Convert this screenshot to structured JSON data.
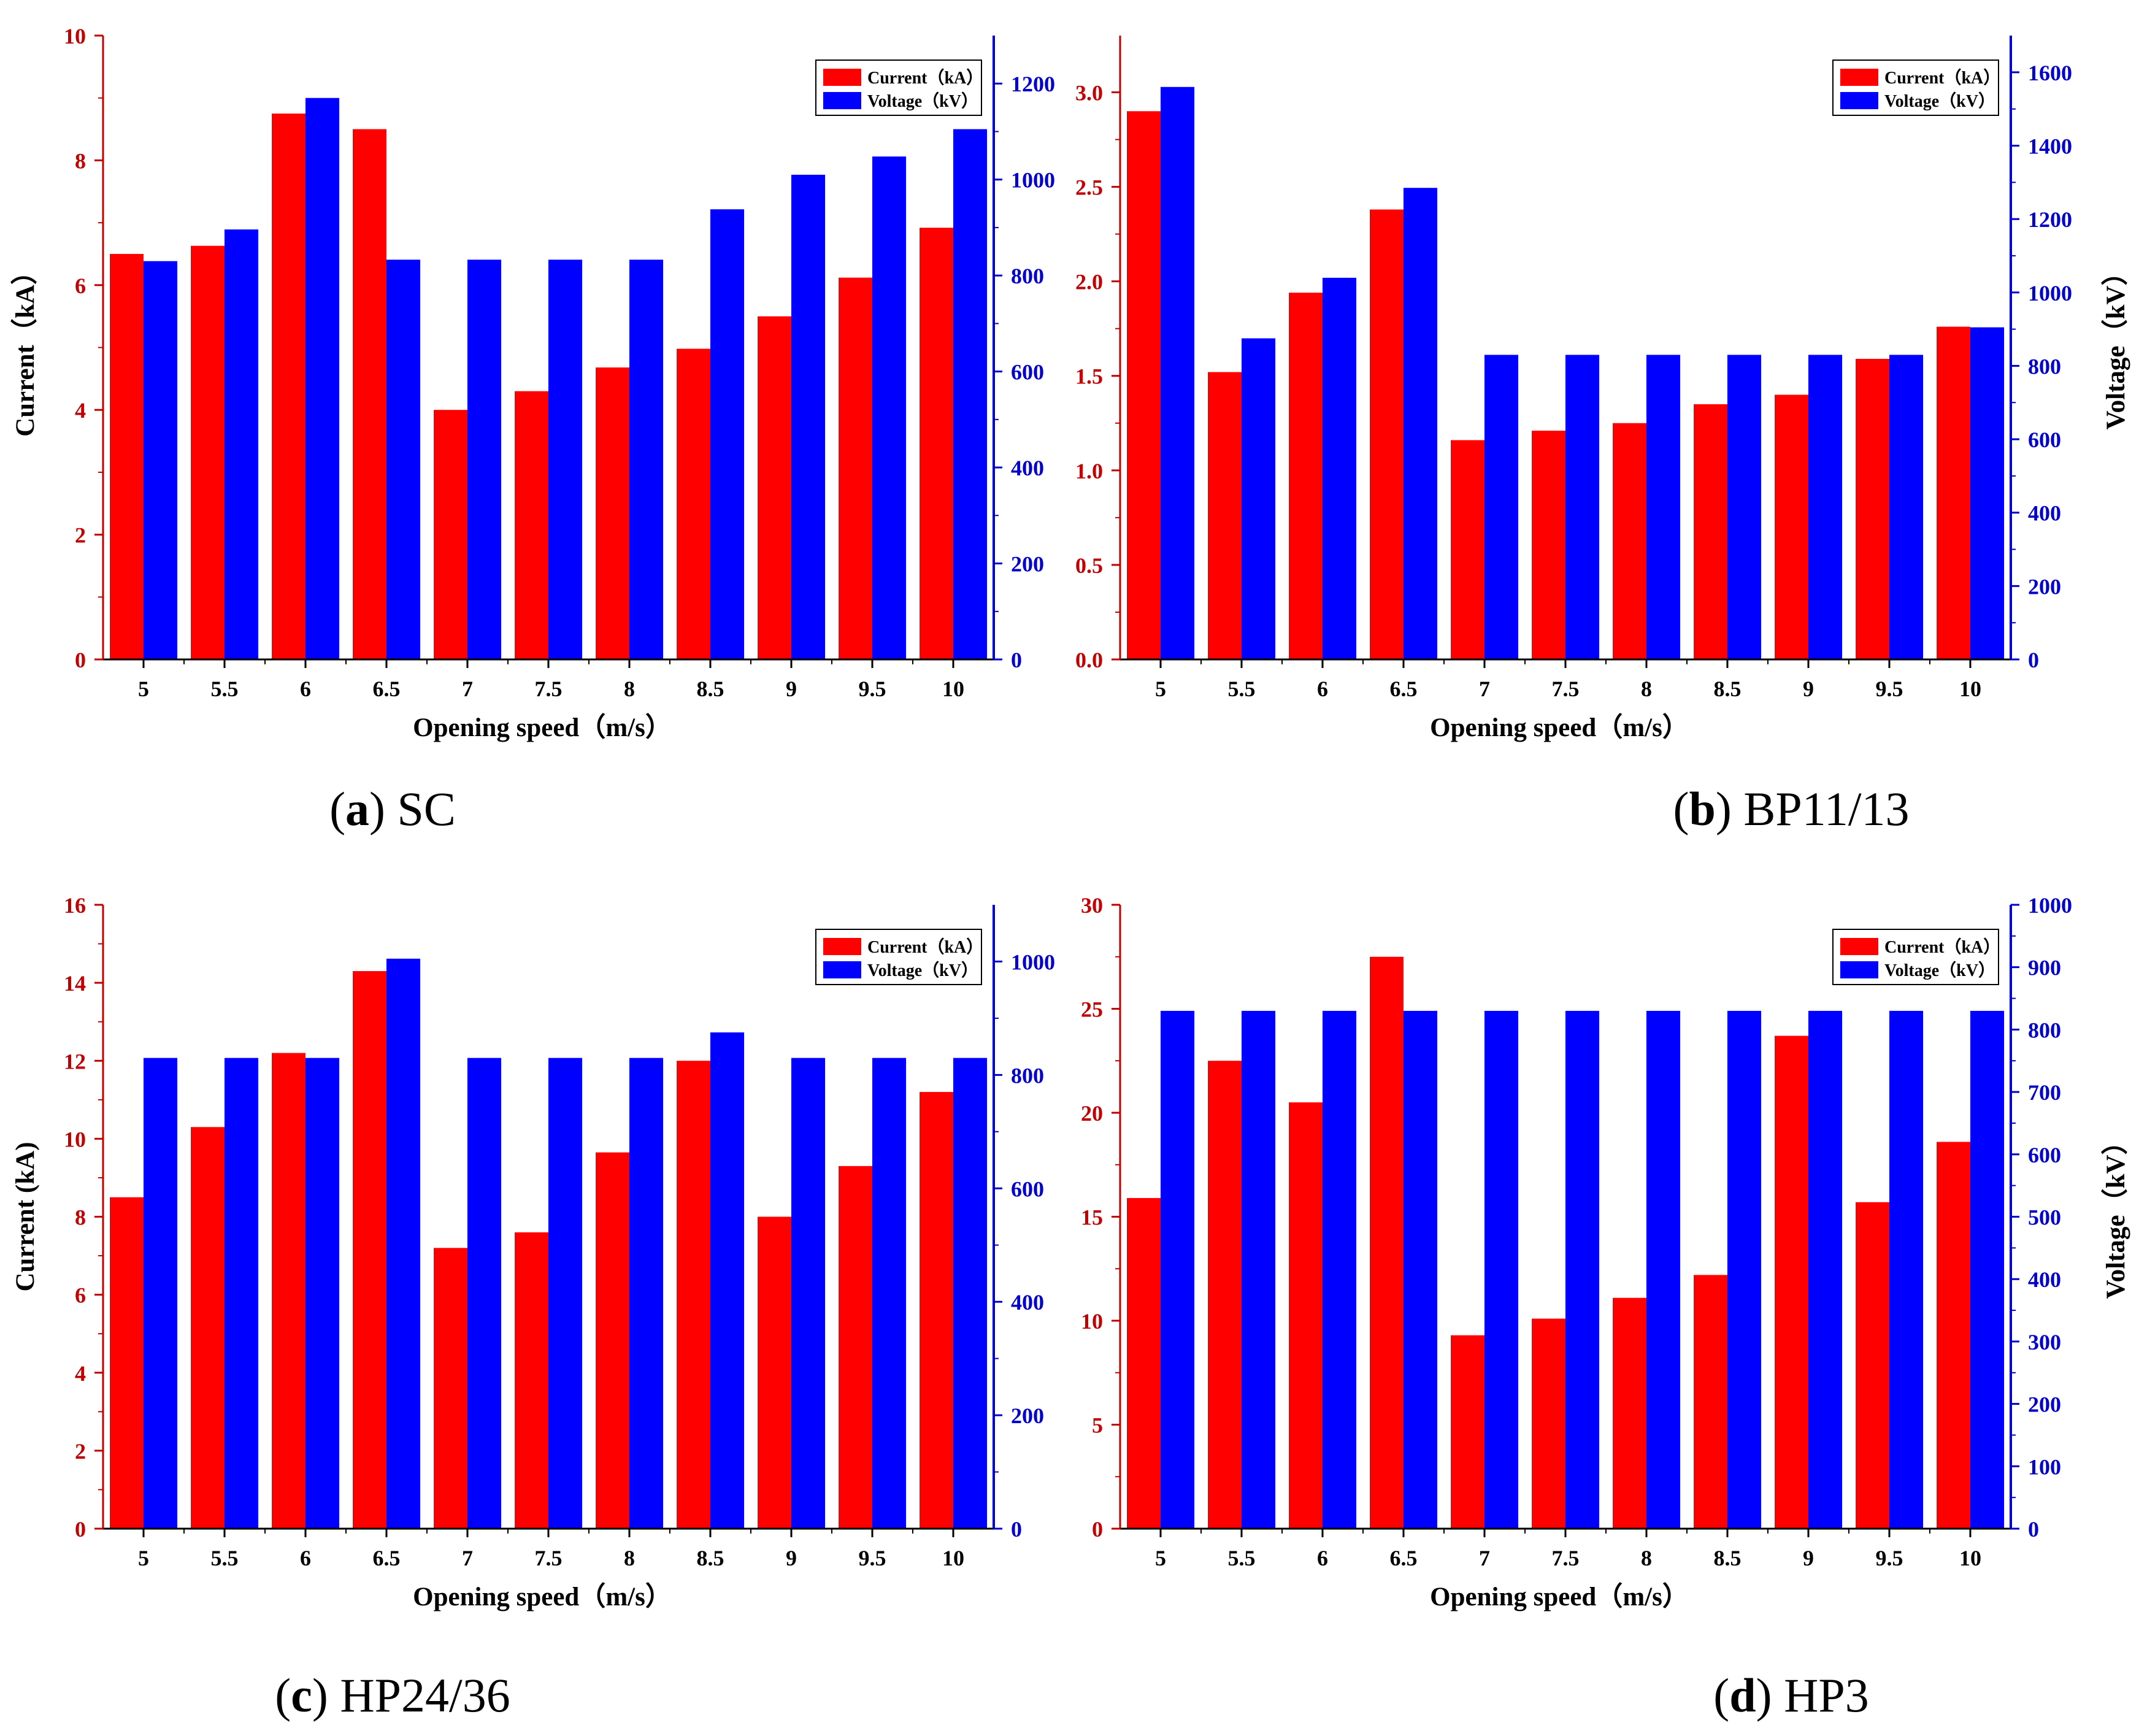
{
  "colors": {
    "current": "#ff0000",
    "voltage": "#0000ff",
    "left_axis": "#c00000",
    "right_axis": "#0000cc"
  },
  "chart_data": [
    {
      "type": "bar",
      "caption_letter": "a",
      "caption_name": "SC",
      "categories": [
        "5",
        "5.5",
        "6",
        "6.5",
        "7",
        "7.5",
        "8",
        "8.5",
        "9",
        "9.5",
        "10"
      ],
      "xlabel": "Opening speed（m/s）",
      "ylabel_left": "Current（kA）",
      "ylabel_right": "",
      "ylim_left": [
        0,
        10
      ],
      "ylim_right": [
        0,
        1300
      ],
      "yticks_left": [
        "0",
        "2",
        "4",
        "6",
        "8",
        "10"
      ],
      "yticks_right": [
        "0",
        "200",
        "400",
        "600",
        "800",
        "1000",
        "1200"
      ],
      "legend_position": "top-right",
      "series": [
        {
          "name": "Current（kA）",
          "axis": "left",
          "values": [
            6.5,
            6.63,
            8.75,
            8.5,
            4.0,
            4.3,
            4.68,
            4.98,
            5.5,
            6.12,
            6.92
          ]
        },
        {
          "name": "Voltage（kV）",
          "axis": "right",
          "values": [
            830,
            896,
            1170,
            833,
            833,
            833,
            833,
            938,
            1010,
            1048,
            1105
          ]
        }
      ]
    },
    {
      "type": "bar",
      "caption_letter": "b",
      "caption_name": "BP11/13",
      "categories": [
        "5",
        "5.5",
        "6",
        "6.5",
        "7",
        "7.5",
        "8",
        "8.5",
        "9",
        "9.5",
        "10"
      ],
      "xlabel": "Opening speed（m/s）",
      "ylabel_left": "",
      "ylabel_right": "Voltage（kV）",
      "ylim_left": [
        0,
        3.3
      ],
      "ylim_right": [
        0,
        1700
      ],
      "yticks_left": [
        "0.0",
        "0.5",
        "1.0",
        "1.5",
        "2.0",
        "2.5",
        "3.0"
      ],
      "yticks_right": [
        "0",
        "200",
        "400",
        "600",
        "800",
        "1000",
        "1200",
        "1400",
        "1600"
      ],
      "legend_position": "top-right",
      "series": [
        {
          "name": "Current（kA）",
          "axis": "left",
          "values": [
            2.9,
            1.52,
            1.94,
            2.38,
            1.16,
            1.21,
            1.25,
            1.35,
            1.4,
            1.59,
            1.76
          ]
        },
        {
          "name": "Voltage（kV）",
          "axis": "right",
          "values": [
            1560,
            875,
            1040,
            1285,
            830,
            830,
            830,
            830,
            830,
            830,
            905
          ]
        }
      ]
    },
    {
      "type": "bar",
      "caption_letter": "c",
      "caption_name": "HP24/36",
      "categories": [
        "5",
        "5.5",
        "6",
        "6.5",
        "7",
        "7.5",
        "8",
        "8.5",
        "9",
        "9.5",
        "10"
      ],
      "xlabel": "Opening speed（m/s）",
      "ylabel_left": "Current (kA)",
      "ylabel_right": "",
      "ylim_left": [
        0,
        16
      ],
      "ylim_right": [
        0,
        1100
      ],
      "yticks_left": [
        "0",
        "2",
        "4",
        "6",
        "8",
        "10",
        "12",
        "14",
        "16"
      ],
      "yticks_right": [
        "0",
        "200",
        "400",
        "600",
        "800",
        "1000"
      ],
      "legend_position": "top-right",
      "series": [
        {
          "name": "Current（kA）",
          "axis": "left",
          "values": [
            8.5,
            10.3,
            12.2,
            14.3,
            7.2,
            7.6,
            9.65,
            12.0,
            8.0,
            9.3,
            11.2
          ]
        },
        {
          "name": "Voltage（kV）",
          "axis": "right",
          "values": [
            830,
            830,
            830,
            1005,
            830,
            830,
            830,
            875,
            830,
            830,
            830
          ]
        }
      ]
    },
    {
      "type": "bar",
      "caption_letter": "d",
      "caption_name": "HP3",
      "categories": [
        "5",
        "5.5",
        "6",
        "6.5",
        "7",
        "7.5",
        "8",
        "8.5",
        "9",
        "9.5",
        "10"
      ],
      "xlabel": "Opening speed（m/s）",
      "ylabel_left": "",
      "ylabel_right": "Voltage（kV）",
      "ylim_left": [
        0,
        30
      ],
      "ylim_right": [
        0,
        1000
      ],
      "yticks_left": [
        "0",
        "5",
        "10",
        "15",
        "20",
        "25",
        "30"
      ],
      "yticks_right": [
        "0",
        "100",
        "200",
        "300",
        "400",
        "500",
        "600",
        "700",
        "800",
        "900",
        "1000"
      ],
      "legend_position": "top-right",
      "series": [
        {
          "name": "Current（kA）",
          "axis": "left",
          "values": [
            15.9,
            22.5,
            20.5,
            27.5,
            9.3,
            10.1,
            11.1,
            12.2,
            23.7,
            15.7,
            18.6
          ]
        },
        {
          "name": "Voltage（kV）",
          "axis": "right",
          "values": [
            830,
            830,
            830,
            830,
            830,
            830,
            830,
            830,
            830,
            830,
            830
          ]
        }
      ]
    }
  ]
}
